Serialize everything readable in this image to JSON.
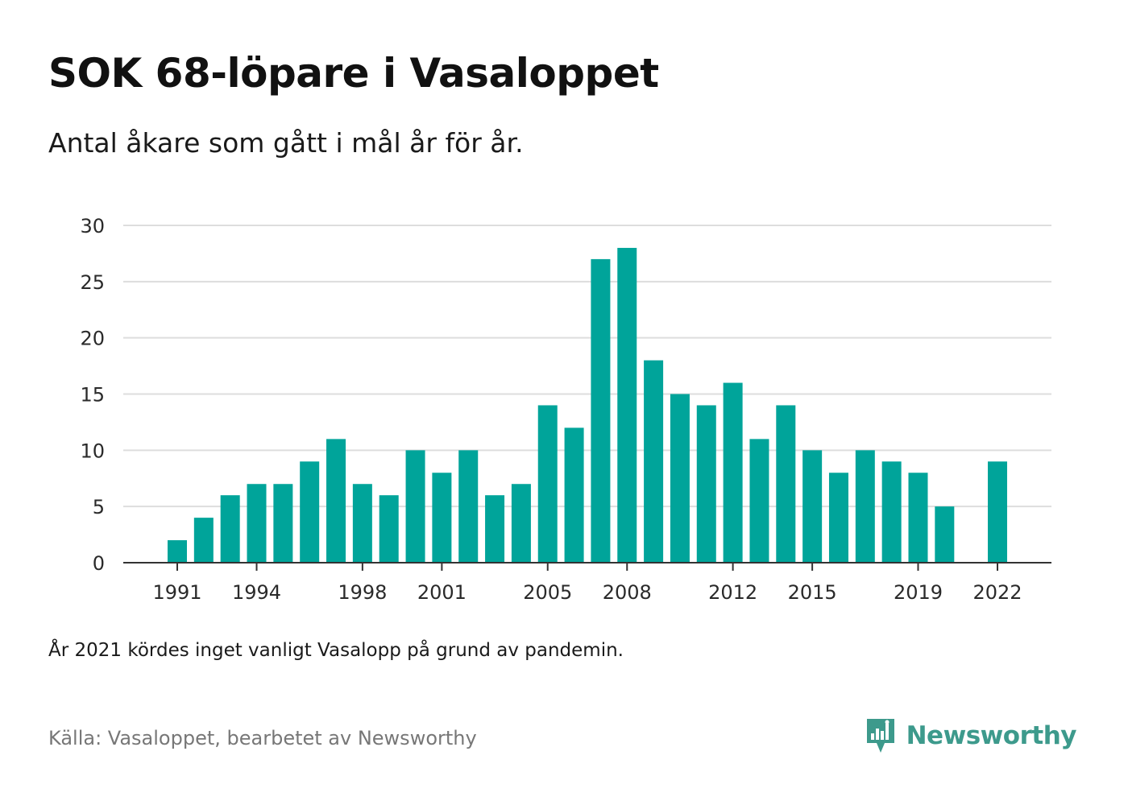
{
  "title": "SOK 68-löpare i Vasaloppet",
  "subtitle": "Antal åkare som gått i mål år för år.",
  "note": "År 2021 kördes inget vanligt Vasalopp på grund av pandemin.",
  "source": "Källa: Vasaloppet, bearbetet av Newsworthy",
  "brand": {
    "name": "Newsworthy",
    "icon": "newsworthy-logo-icon"
  },
  "colors": {
    "bar": "#00a49a",
    "grid": "#dddddd",
    "axis": "#333333",
    "brand": "#3d9a8c"
  },
  "chart_data": {
    "type": "bar",
    "categories": [
      "1991",
      "1992",
      "1993",
      "1994",
      "1995",
      "1996",
      "1997",
      "1998",
      "1999",
      "2000",
      "2001",
      "2002",
      "2003",
      "2004",
      "2005",
      "2006",
      "2007",
      "2008",
      "2009",
      "2010",
      "2011",
      "2012",
      "2013",
      "2014",
      "2015",
      "2016",
      "2017",
      "2018",
      "2019",
      "2020",
      "2021",
      "2022"
    ],
    "values": [
      2,
      4,
      6,
      7,
      7,
      9,
      11,
      7,
      6,
      10,
      8,
      10,
      6,
      7,
      14,
      12,
      27,
      28,
      18,
      15,
      14,
      16,
      11,
      14,
      10,
      8,
      10,
      9,
      8,
      5,
      null,
      9
    ],
    "x_tick_labels": [
      "1991",
      "1994",
      "1998",
      "2001",
      "2005",
      "2008",
      "2012",
      "2015",
      "2019",
      "2022"
    ],
    "y_ticks": [
      0,
      5,
      10,
      15,
      20,
      25,
      30
    ],
    "ylim": [
      0,
      30
    ],
    "grid": true,
    "legend": "none"
  }
}
